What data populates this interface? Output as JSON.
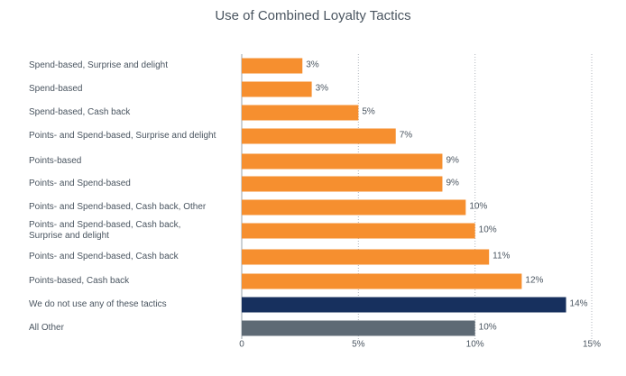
{
  "chart_data": {
    "type": "barh",
    "title": "Use of Combined Loyalty Tactics",
    "categories": [
      "Spend-based, Surprise and delight",
      "Spend-based",
      "Spend-based, Cash back",
      "Points- and Spend-based, Surprise and delight",
      "Points-based",
      "Points- and Spend-based",
      "Points- and Spend-based, Cash back, Other",
      "Points- and Spend-based, Cash back,\nSurprise and delight",
      "Points- and Spend-based, Cash back",
      "Points-based, Cash back",
      "We do not use any of these tactics",
      "All Other"
    ],
    "values": [
      2.6,
      3.0,
      5.0,
      6.6,
      8.6,
      8.6,
      9.6,
      10.0,
      10.6,
      12.0,
      13.9,
      10.0
    ],
    "value_labels": [
      "3%",
      "3%",
      "5%",
      "7%",
      "9%",
      "9%",
      "10%",
      "10%",
      "11%",
      "12%",
      "14%",
      "10%"
    ],
    "colors": [
      "#f68f2f",
      "#f68f2f",
      "#f68f2f",
      "#f68f2f",
      "#f68f2f",
      "#f68f2f",
      "#f68f2f",
      "#f68f2f",
      "#f68f2f",
      "#f68f2f",
      "#17305e",
      "#5e6a75"
    ],
    "xlim": [
      0,
      15
    ],
    "xticks": [
      0,
      {
        "value": 5,
        "label": "5%"
      },
      {
        "value": 10,
        "label": "10%"
      },
      {
        "value": 15,
        "label": "15%"
      }
    ],
    "grid": true
  }
}
